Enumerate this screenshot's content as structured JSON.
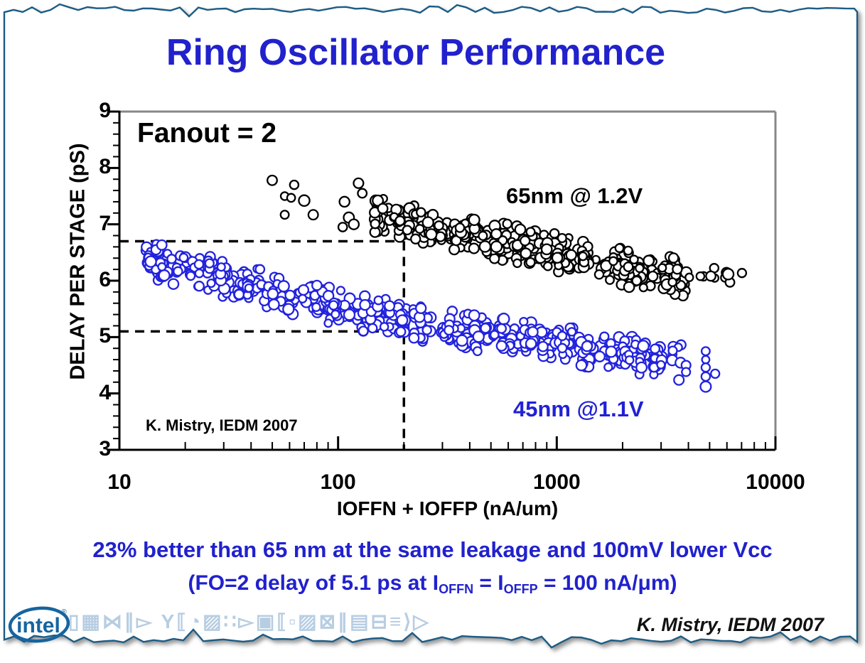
{
  "page": {
    "title": "Ring Oscillator Performance",
    "colors": {
      "title_blue": "#2121cd",
      "marker_blue": "#2222de",
      "frame_blue": "#1c5c85",
      "axis_gray": "#878787",
      "deco_light_blue": "#b7cde2",
      "intel_blue": "#16649f"
    }
  },
  "chart_data": {
    "type": "scatter",
    "xlabel": "IOFFN + IOFFP (nA/um)",
    "ylabel": "DELAY PER STAGE (pS)",
    "xscale": "log",
    "xlim": [
      10,
      10000
    ],
    "ylim": [
      3,
      9
    ],
    "x_ticks": [
      10,
      100,
      1000,
      10000
    ],
    "y_ticks": [
      9,
      8,
      7,
      6,
      5,
      4,
      3
    ],
    "y_minor_step": 0.2,
    "grid": false,
    "annotation_fanout": "Fanout = 2",
    "annotation_credit": "K. Mistry, IEDM 2007",
    "guides": {
      "y_65nm_ps": 6.7,
      "y_45nm_ps": 5.1,
      "x_total_leakage_nA_um": 200
    },
    "series": [
      {
        "name": "65nm @ 1.2V",
        "color": "#000000",
        "marker": "open-circle",
        "band": {
          "log10x_range": [
            2.17,
            3.6
          ],
          "n": 470,
          "y_sd": 0.14,
          "y_clamp": 0.33,
          "trend": [
            [
              2.0,
              7.3
            ],
            [
              2.35,
              7.0
            ],
            [
              2.7,
              6.73
            ],
            [
              3.0,
              6.5
            ],
            [
              3.3,
              6.24
            ],
            [
              3.6,
              6.05
            ]
          ]
        },
        "sparse": {
          "log10x_range": [
            3.6,
            3.92
          ],
          "n": 11,
          "y_mean": 6.05,
          "y_sd": 0.1
        },
        "outliers": [
          [
            50,
            7.78
          ],
          [
            63,
            7.7
          ],
          [
            57,
            7.5
          ],
          [
            61,
            7.47
          ],
          [
            70,
            7.42
          ],
          [
            57,
            7.17
          ],
          [
            77,
            7.17
          ],
          [
            124,
            7.73
          ],
          [
            129,
            7.55
          ],
          [
            107,
            7.4
          ],
          [
            112,
            7.12
          ],
          [
            118,
            7.0
          ],
          [
            105,
            6.95
          ],
          [
            152,
            7.42
          ],
          [
            160,
            7.28
          ]
        ]
      },
      {
        "name": "45nm @1.1V",
        "color": "#2222de",
        "marker": "open-circle",
        "band": {
          "log10x_range": [
            1.12,
            3.58
          ],
          "n": 640,
          "y_sd": 0.14,
          "y_clamp": 0.32,
          "trend": [
            [
              1.12,
              6.38
            ],
            [
              1.5,
              6.02
            ],
            [
              2.0,
              5.52
            ],
            [
              2.3,
              5.28
            ],
            [
              2.7,
              5.03
            ],
            [
              3.0,
              4.88
            ],
            [
              3.3,
              4.7
            ],
            [
              3.58,
              4.55
            ]
          ]
        },
        "outliers": [
          [
            4800,
            4.75
          ],
          [
            4800,
            4.6
          ],
          [
            4800,
            4.46
          ],
          [
            4800,
            4.3
          ],
          [
            4800,
            4.12
          ],
          [
            5300,
            4.35
          ],
          [
            3900,
            4.5
          ],
          [
            3900,
            4.38
          ]
        ]
      }
    ]
  },
  "footer": {
    "line1": "23% better than 65 nm at the same leakage and 100mV lower Vcc",
    "line2_segments": [
      {
        "t": "(FO=2 delay of 5.1 ps at I"
      },
      {
        "t": "OFFN",
        "sub": true
      },
      {
        "t": " = I"
      },
      {
        "t": "OFFP",
        "sub": true
      },
      {
        "t": " = 100 nA/"
      },
      {
        "t": "μm)"
      }
    ],
    "credit": "K. Mistry, IEDM 2007"
  },
  "branding": {
    "logo_text": "intel",
    "logo_mark": "®",
    "deco_glyphs": "▯▦⋈∥▻ Y⟦◔▨∷▻▣⟦▫▨⊠∥▤⊟≡⟩▷"
  }
}
